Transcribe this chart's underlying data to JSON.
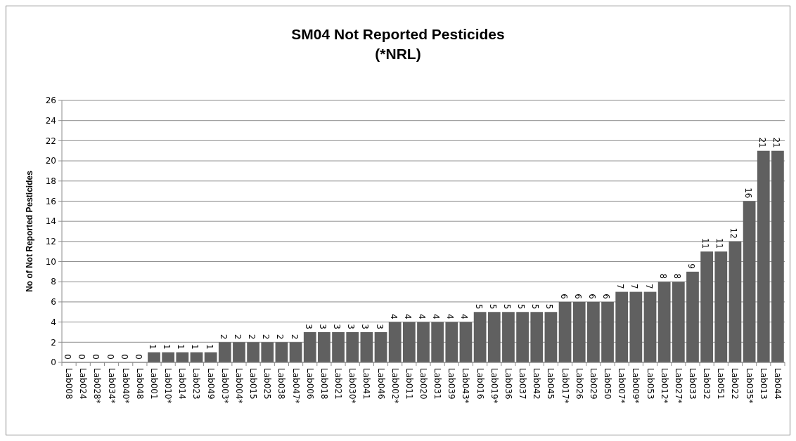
{
  "chart_data": {
    "type": "bar",
    "title": "SM04 Not Reported Pesticides",
    "subtitle": "(*NRL)",
    "ylabel": "No of Not Reported Pesticides",
    "categories": [
      "Lab008",
      "Lab024",
      "Lab028*",
      "Lab034*",
      "Lab040*",
      "Lab048",
      "Lab001",
      "Lab010*",
      "Lab014",
      "Lab023",
      "Lab049",
      "Lab003*",
      "Lab004*",
      "Lab015",
      "Lab025",
      "Lab038",
      "Lab047*",
      "Lab006",
      "Lab018",
      "Lab021",
      "Lab030*",
      "Lab041",
      "Lab046",
      "Lab002*",
      "Lab011",
      "Lab020",
      "Lab031",
      "Lab039",
      "Lab043*",
      "Lab016",
      "Lab019*",
      "Lab036",
      "Lab037",
      "Lab042",
      "Lab045",
      "Lab017*",
      "Lab026",
      "Lab029",
      "Lab050",
      "Lab007*",
      "Lab009*",
      "Lab053",
      "Lab012*",
      "Lab027*",
      "Lab033",
      "Lab032",
      "Lab051",
      "Lab022",
      "Lab035*",
      "Lab013",
      "Lab044"
    ],
    "values": [
      0,
      0,
      0,
      0,
      0,
      0,
      1,
      1,
      1,
      1,
      1,
      2,
      2,
      2,
      2,
      2,
      2,
      3,
      3,
      3,
      3,
      3,
      3,
      4,
      4,
      4,
      4,
      4,
      4,
      5,
      5,
      5,
      5,
      5,
      5,
      6,
      6,
      6,
      6,
      7,
      7,
      7,
      8,
      8,
      9,
      11,
      11,
      12,
      16,
      21,
      21
    ],
    "color": "#606060",
    "ylim": [
      0,
      26
    ],
    "yticks": [
      0,
      2,
      4,
      6,
      8,
      10,
      12,
      14,
      16,
      18,
      20,
      22,
      24,
      26
    ],
    "grid": "y",
    "data_labels": true
  }
}
